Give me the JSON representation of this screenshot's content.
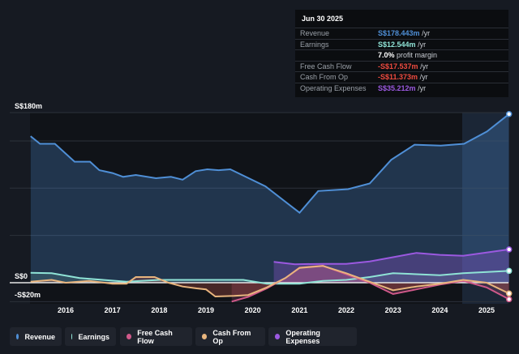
{
  "tooltip": {
    "date": "Jun 30 2025",
    "rows": [
      {
        "label": "Revenue",
        "value": "S$178.443m",
        "unit": "/yr",
        "color": "#4f8fd6"
      },
      {
        "label": "Earnings",
        "value": "S$12.544m",
        "unit": "/yr",
        "color": "#8fe3d6"
      },
      {
        "label": "",
        "value": "7.0%",
        "unit": "profit margin",
        "color": "#ffffff"
      },
      {
        "label": "Free Cash Flow",
        "value": "-S$17.537m",
        "unit": "/yr",
        "color": "#ef4b3f"
      },
      {
        "label": "Cash From Op",
        "value": "-S$11.373m",
        "unit": "/yr",
        "color": "#ef4b3f"
      },
      {
        "label": "Operating Expenses",
        "value": "S$35.212m",
        "unit": "/yr",
        "color": "#9b59e0"
      }
    ]
  },
  "legend": [
    {
      "label": "Revenue",
      "color": "#4f8fd6"
    },
    {
      "label": "Earnings",
      "color": "#8fe3d6"
    },
    {
      "label": "Free Cash Flow",
      "color": "#d0598a"
    },
    {
      "label": "Cash From Op",
      "color": "#e8b57e"
    },
    {
      "label": "Operating Expenses",
      "color": "#9b59e0"
    }
  ],
  "chart_data": {
    "type": "area",
    "xlabel": "",
    "ylabel": "",
    "y_tick_labels": [
      "S$180m",
      "S$0",
      "-S$20m"
    ],
    "x_tick_labels": [
      "2016",
      "2017",
      "2018",
      "2019",
      "2020",
      "2021",
      "2022",
      "2023",
      "2024",
      "2025"
    ],
    "ylim": [
      -22,
      180
    ],
    "xlim": [
      2015,
      2025.5
    ],
    "grid": true,
    "legend_position": "bottom",
    "series": [
      {
        "name": "Revenue",
        "color": "#4f8fd6",
        "points": [
          [
            2015.25,
            155
          ],
          [
            2015.45,
            147
          ],
          [
            2015.77,
            147
          ],
          [
            2016.19,
            128
          ],
          [
            2016.52,
            128
          ],
          [
            2016.72,
            119
          ],
          [
            2017.0,
            116
          ],
          [
            2017.23,
            112
          ],
          [
            2017.5,
            114
          ],
          [
            2017.93,
            110.5
          ],
          [
            2018.25,
            112
          ],
          [
            2018.5,
            109
          ],
          [
            2018.78,
            118
          ],
          [
            2019.03,
            120
          ],
          [
            2019.27,
            119
          ],
          [
            2019.52,
            120
          ],
          [
            2020.27,
            102
          ],
          [
            2021.0,
            74
          ],
          [
            2021.4,
            97
          ],
          [
            2022.04,
            99
          ],
          [
            2022.5,
            105
          ],
          [
            2022.96,
            130
          ],
          [
            2023.46,
            146
          ],
          [
            2024.02,
            145
          ],
          [
            2024.52,
            147
          ],
          [
            2025.01,
            160
          ],
          [
            2025.48,
            178.4
          ]
        ]
      },
      {
        "name": "Earnings",
        "color": "#8fe3d6",
        "points": [
          [
            2015.25,
            10.5
          ],
          [
            2015.7,
            10
          ],
          [
            2016.3,
            5
          ],
          [
            2016.8,
            3
          ],
          [
            2017.3,
            1
          ],
          [
            2018,
            3
          ],
          [
            2019,
            3
          ],
          [
            2019.8,
            3
          ],
          [
            2020.3,
            -1
          ],
          [
            2021,
            -1
          ],
          [
            2021.5,
            2
          ],
          [
            2022,
            3
          ],
          [
            2022.5,
            6
          ],
          [
            2023,
            10
          ],
          [
            2024,
            8
          ],
          [
            2024.5,
            10
          ],
          [
            2025.48,
            12.5
          ]
        ]
      },
      {
        "name": "Free Cash Flow",
        "color": "#d0598a",
        "points": [
          [
            2019.55,
            -20
          ],
          [
            2019.9,
            -15
          ],
          [
            2020.3,
            -6
          ],
          [
            2020.7,
            5
          ],
          [
            2021,
            16
          ],
          [
            2021.5,
            18
          ],
          [
            2022,
            9
          ],
          [
            2022.5,
            0
          ],
          [
            2023,
            -12
          ],
          [
            2023.5,
            -7
          ],
          [
            2024,
            -2
          ],
          [
            2024.5,
            2
          ],
          [
            2025,
            -5
          ],
          [
            2025.48,
            -17.5
          ]
        ]
      },
      {
        "name": "Cash From Op",
        "color": "#e8b57e",
        "points": [
          [
            2015.25,
            1
          ],
          [
            2015.7,
            3
          ],
          [
            2016,
            0
          ],
          [
            2016.5,
            2
          ],
          [
            2017,
            -1
          ],
          [
            2017.3,
            -1
          ],
          [
            2017.5,
            6
          ],
          [
            2017.9,
            6
          ],
          [
            2018.2,
            0
          ],
          [
            2018.5,
            -4
          ],
          [
            2018.8,
            -6
          ],
          [
            2019.0,
            -7
          ],
          [
            2019.2,
            -14.6
          ],
          [
            2019.6,
            -14
          ],
          [
            2019.9,
            -13
          ],
          [
            2020.3,
            -5
          ],
          [
            2020.7,
            5
          ],
          [
            2021,
            15.7
          ],
          [
            2021.5,
            17.7
          ],
          [
            2022,
            10
          ],
          [
            2022.5,
            1
          ],
          [
            2023,
            -8
          ],
          [
            2023.5,
            -4
          ],
          [
            2024,
            -1
          ],
          [
            2024.5,
            3
          ],
          [
            2025,
            0
          ],
          [
            2025.48,
            -11.4
          ]
        ]
      },
      {
        "name": "Operating Expenses",
        "color": "#9b59e0",
        "points": [
          [
            2020.45,
            22
          ],
          [
            2020.9,
            19.5
          ],
          [
            2021.5,
            20
          ],
          [
            2022,
            20
          ],
          [
            2022.5,
            22.5
          ],
          [
            2023,
            27
          ],
          [
            2023.5,
            31.5
          ],
          [
            2024,
            29.5
          ],
          [
            2024.5,
            28.5
          ],
          [
            2025.48,
            35.2
          ]
        ]
      }
    ]
  }
}
